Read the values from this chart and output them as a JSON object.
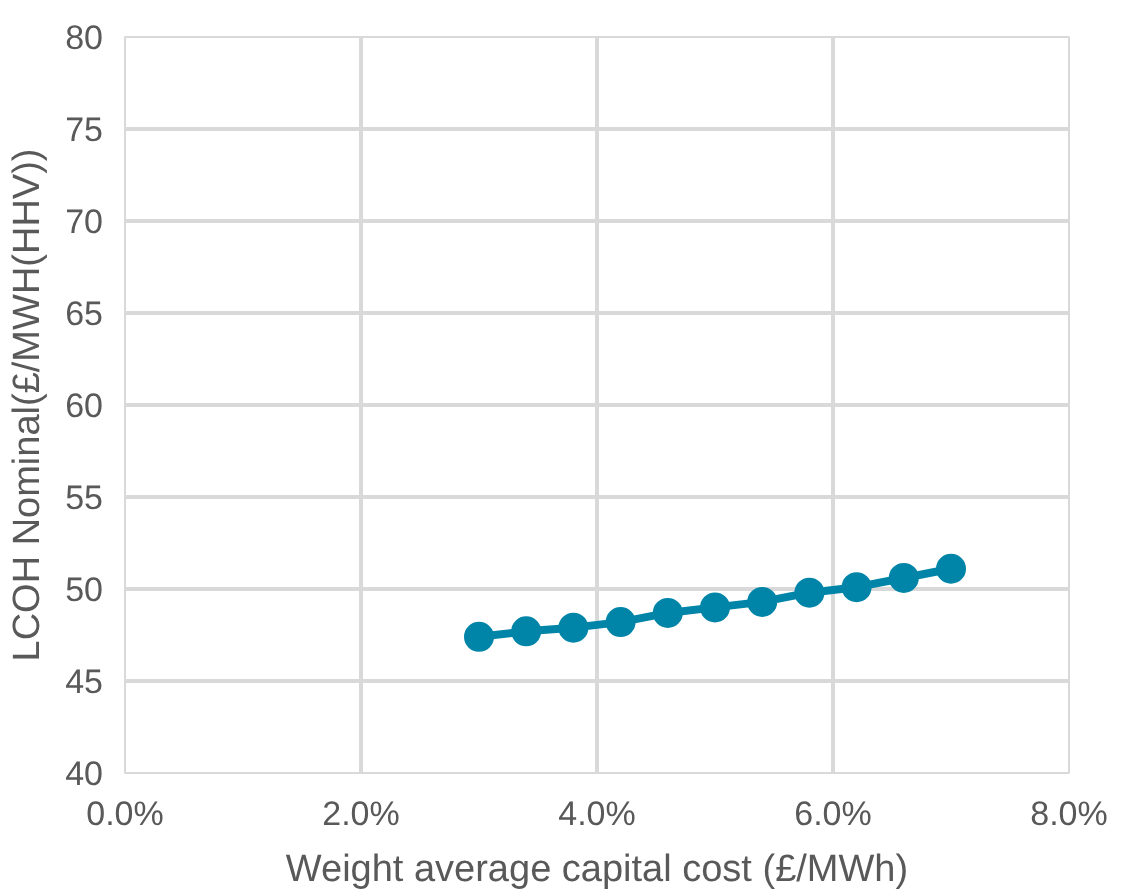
{
  "chart_data": {
    "type": "line",
    "xlabel": "Weight average capital cost (£/MWh)",
    "ylabel": "LCOH Nominal(£/MWH(HHV))",
    "x": [
      3.0,
      3.4,
      3.8,
      4.2,
      4.6,
      5.0,
      5.4,
      5.8,
      6.2,
      6.6,
      7.0
    ],
    "series": [
      {
        "color": "#0085a8",
        "values": [
          47.4,
          47.7,
          47.9,
          48.2,
          48.7,
          49.0,
          49.3,
          49.8,
          50.1,
          50.6,
          51.1
        ]
      }
    ],
    "xlim": [
      0,
      8
    ],
    "xticks": [
      {
        "value": 0,
        "label": "0.0%"
      },
      {
        "value": 2,
        "label": "2.0%"
      },
      {
        "value": 4,
        "label": "4.0%"
      },
      {
        "value": 6,
        "label": "6.0%"
      },
      {
        "value": 8,
        "label": "8.0%"
      }
    ],
    "ylim": [
      40,
      80
    ],
    "yticks": [
      40,
      45,
      50,
      55,
      60,
      65,
      70,
      75,
      80
    ],
    "grid": true,
    "marker": "circle",
    "line_style": "solid"
  }
}
